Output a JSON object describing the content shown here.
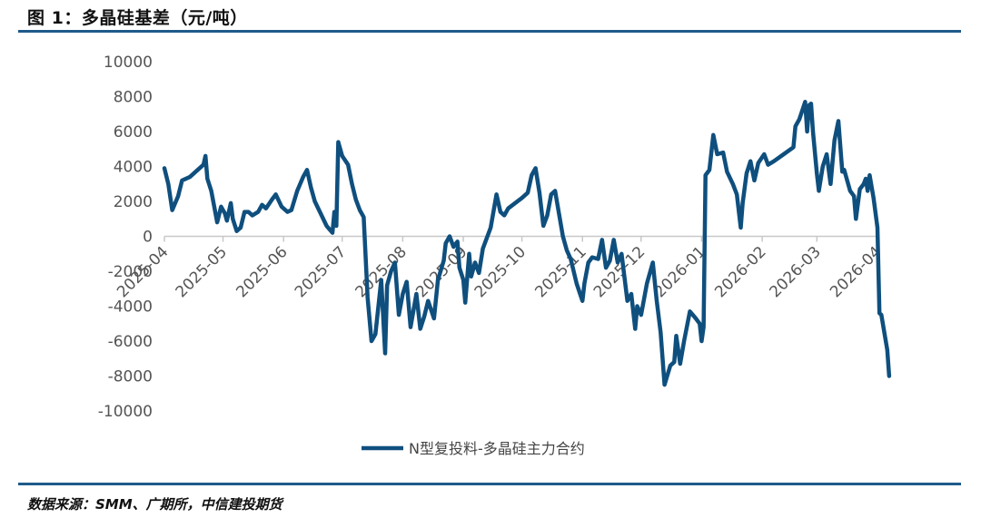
{
  "header": {
    "title": "图 1：多晶硅基差（元/吨）"
  },
  "footer": {
    "source": "数据来源：SMM、广期所，中信建投期货"
  },
  "colors": {
    "series": "#0f4f7e",
    "rule": "#1e5a8a",
    "axis": "#c8c8c8"
  },
  "chart_data": {
    "type": "line",
    "title": "",
    "xlabel": "",
    "ylabel": "",
    "ylim": [
      -10000,
      10000
    ],
    "yticks": [
      10000,
      8000,
      6000,
      4000,
      2000,
      0,
      -2000,
      -4000,
      -6000,
      -8000,
      -10000
    ],
    "yticklabels": [
      "10000",
      "8000",
      "6000",
      "4000",
      "2000",
      "0",
      "-2000",
      "-4000",
      "-6000",
      "-8000",
      "-10000"
    ],
    "xticklabels": [
      "2025-04",
      "2025-05",
      "2025-06",
      "2025-07",
      "2025-08",
      "2025-09",
      "2025-10",
      "2025-11",
      "2025-12",
      "2026-01",
      "2026-02",
      "2026-03",
      "2026-04"
    ],
    "x_start": "2025-04-01",
    "x_end": "2026-04-01",
    "legend_position": "bottom-center",
    "grid": false,
    "series": [
      {
        "name": "N型复投料-多晶硅主力合约",
        "points": [
          [
            "2025-04-01",
            3900
          ],
          [
            "2025-04-03",
            3000
          ],
          [
            "2025-04-05",
            1500
          ],
          [
            "2025-04-08",
            2300
          ],
          [
            "2025-04-10",
            3200
          ],
          [
            "2025-04-14",
            3400
          ],
          [
            "2025-04-18",
            3800
          ],
          [
            "2025-04-21",
            4100
          ],
          [
            "2025-04-22",
            4600
          ],
          [
            "2025-04-23",
            3300
          ],
          [
            "2025-04-25",
            2600
          ],
          [
            "2025-04-28",
            800
          ],
          [
            "2025-04-30",
            1700
          ],
          [
            "2025-05-02",
            1300
          ],
          [
            "2025-05-03",
            900
          ],
          [
            "2025-05-05",
            1900
          ],
          [
            "2025-05-06",
            1000
          ],
          [
            "2025-05-08",
            300
          ],
          [
            "2025-05-10",
            500
          ],
          [
            "2025-05-12",
            1400
          ],
          [
            "2025-05-14",
            1400
          ],
          [
            "2025-05-16",
            1200
          ],
          [
            "2025-05-19",
            1400
          ],
          [
            "2025-05-21",
            1800
          ],
          [
            "2025-05-23",
            1600
          ],
          [
            "2025-05-26",
            2100
          ],
          [
            "2025-05-28",
            2400
          ],
          [
            "2025-05-31",
            1700
          ],
          [
            "2025-06-03",
            1400
          ],
          [
            "2025-06-05",
            1500
          ],
          [
            "2025-06-08",
            2600
          ],
          [
            "2025-06-11",
            3400
          ],
          [
            "2025-06-13",
            3800
          ],
          [
            "2025-06-15",
            2800
          ],
          [
            "2025-06-17",
            2000
          ],
          [
            "2025-06-20",
            1300
          ],
          [
            "2025-06-23",
            600
          ],
          [
            "2025-06-26",
            200
          ],
          [
            "2025-06-27",
            1400
          ],
          [
            "2025-06-28",
            600
          ],
          [
            "2025-06-29",
            5400
          ],
          [
            "2025-07-01",
            4600
          ],
          [
            "2025-07-04",
            4100
          ],
          [
            "2025-07-06",
            3000
          ],
          [
            "2025-07-08",
            2100
          ],
          [
            "2025-07-10",
            1500
          ],
          [
            "2025-07-12",
            1100
          ],
          [
            "2025-07-14",
            -3500
          ],
          [
            "2025-07-16",
            -6000
          ],
          [
            "2025-07-18",
            -5600
          ],
          [
            "2025-07-21",
            -2500
          ],
          [
            "2025-07-23",
            -6700
          ],
          [
            "2025-07-24",
            -2800
          ],
          [
            "2025-07-26",
            -2000
          ],
          [
            "2025-07-28",
            -1500
          ],
          [
            "2025-07-30",
            -4500
          ],
          [
            "2025-08-01",
            -3300
          ],
          [
            "2025-08-03",
            -2600
          ],
          [
            "2025-08-05",
            -5200
          ],
          [
            "2025-08-08",
            -3300
          ],
          [
            "2025-08-10",
            -5300
          ],
          [
            "2025-08-12",
            -4600
          ],
          [
            "2025-08-14",
            -3700
          ],
          [
            "2025-08-17",
            -4700
          ],
          [
            "2025-08-19",
            -2500
          ],
          [
            "2025-08-22",
            -1400
          ],
          [
            "2025-08-23",
            -400
          ],
          [
            "2025-08-25",
            0
          ],
          [
            "2025-08-27",
            -600
          ],
          [
            "2025-08-29",
            -300
          ],
          [
            "2025-08-30",
            -1800
          ],
          [
            "2025-09-01",
            -2500
          ],
          [
            "2025-09-02",
            -3800
          ],
          [
            "2025-09-04",
            -1000
          ],
          [
            "2025-09-05",
            -2300
          ],
          [
            "2025-09-07",
            -1500
          ],
          [
            "2025-09-09",
            -2100
          ],
          [
            "2025-09-11",
            -700
          ],
          [
            "2025-09-15",
            500
          ],
          [
            "2025-09-18",
            2400
          ],
          [
            "2025-09-20",
            1400
          ],
          [
            "2025-09-22",
            1200
          ],
          [
            "2025-09-24",
            1600
          ],
          [
            "2025-10-01",
            2200
          ],
          [
            "2025-10-04",
            2500
          ],
          [
            "2025-10-06",
            3500
          ],
          [
            "2025-10-08",
            3900
          ],
          [
            "2025-10-10",
            2500
          ],
          [
            "2025-10-12",
            600
          ],
          [
            "2025-10-14",
            1200
          ],
          [
            "2025-10-16",
            2400
          ],
          [
            "2025-10-18",
            2600
          ],
          [
            "2025-10-20",
            1300
          ],
          [
            "2025-10-22",
            0
          ],
          [
            "2025-10-24",
            -800
          ],
          [
            "2025-10-26",
            -1300
          ],
          [
            "2025-10-29",
            -2700
          ],
          [
            "2025-11-01",
            -3700
          ],
          [
            "2025-11-02",
            -2700
          ],
          [
            "2025-11-04",
            -1500
          ],
          [
            "2025-11-06",
            -1200
          ],
          [
            "2025-11-09",
            -1300
          ],
          [
            "2025-11-11",
            -200
          ],
          [
            "2025-11-13",
            -1800
          ],
          [
            "2025-11-15",
            -1400
          ],
          [
            "2025-11-17",
            -200
          ],
          [
            "2025-11-19",
            -1500
          ],
          [
            "2025-11-21",
            -1000
          ],
          [
            "2025-11-24",
            -3700
          ],
          [
            "2025-11-26",
            -3300
          ],
          [
            "2025-11-28",
            -5300
          ],
          [
            "2025-11-29",
            -4000
          ],
          [
            "2025-12-01",
            -4500
          ],
          [
            "2025-12-04",
            -2700
          ],
          [
            "2025-12-07",
            -1500
          ],
          [
            "2025-12-09",
            -3700
          ],
          [
            "2025-12-11",
            -5500
          ],
          [
            "2025-12-13",
            -8500
          ],
          [
            "2025-12-16",
            -7400
          ],
          [
            "2025-12-18",
            -7200
          ],
          [
            "2025-12-19",
            -5700
          ],
          [
            "2025-12-21",
            -7300
          ],
          [
            "2025-12-23",
            -6000
          ],
          [
            "2025-12-26",
            -4300
          ],
          [
            "2025-12-29",
            -4700
          ],
          [
            "2025-12-31",
            -5000
          ],
          [
            "2026-01-01",
            -6000
          ],
          [
            "2026-01-02",
            -5200
          ],
          [
            "2026-01-03",
            3500
          ],
          [
            "2026-01-05",
            3800
          ],
          [
            "2026-01-07",
            5800
          ],
          [
            "2026-01-09",
            4700
          ],
          [
            "2026-01-12",
            4800
          ],
          [
            "2026-01-14",
            3700
          ],
          [
            "2026-01-17",
            3000
          ],
          [
            "2026-01-19",
            2400
          ],
          [
            "2026-01-21",
            500
          ],
          [
            "2026-01-22",
            1900
          ],
          [
            "2026-01-24",
            3600
          ],
          [
            "2026-01-26",
            4300
          ],
          [
            "2026-01-28",
            3200
          ],
          [
            "2026-01-30",
            4200
          ],
          [
            "2026-02-02",
            4700
          ],
          [
            "2026-02-04",
            4100
          ],
          [
            "2026-02-07",
            4300
          ],
          [
            "2026-02-12",
            4700
          ],
          [
            "2026-02-17",
            5100
          ],
          [
            "2026-02-18",
            6300
          ],
          [
            "2026-02-20",
            6700
          ],
          [
            "2026-02-23",
            7700
          ],
          [
            "2026-02-24",
            6000
          ],
          [
            "2026-02-25",
            7500
          ],
          [
            "2026-02-26",
            7600
          ],
          [
            "2026-02-27",
            6000
          ],
          [
            "2026-03-01",
            3600
          ],
          [
            "2026-03-02",
            2600
          ],
          [
            "2026-03-04",
            4000
          ],
          [
            "2026-03-06",
            4700
          ],
          [
            "2026-03-08",
            3000
          ],
          [
            "2026-03-10",
            5500
          ],
          [
            "2026-03-12",
            6600
          ],
          [
            "2026-03-14",
            3700
          ],
          [
            "2026-03-15",
            3800
          ],
          [
            "2026-03-18",
            2600
          ],
          [
            "2026-03-20",
            2300
          ],
          [
            "2026-03-21",
            1000
          ],
          [
            "2026-03-23",
            2700
          ],
          [
            "2026-03-25",
            3000
          ],
          [
            "2026-03-26",
            3300
          ],
          [
            "2026-03-27",
            2600
          ],
          [
            "2026-03-28",
            3500
          ],
          [
            "2026-03-30",
            2200
          ],
          [
            "2026-04-01",
            500
          ],
          [
            "2026-04-02",
            -4400
          ],
          [
            "2026-04-03",
            -4500
          ],
          [
            "2026-04-06",
            -6500
          ],
          [
            "2026-04-07",
            -8000
          ]
        ]
      }
    ]
  }
}
